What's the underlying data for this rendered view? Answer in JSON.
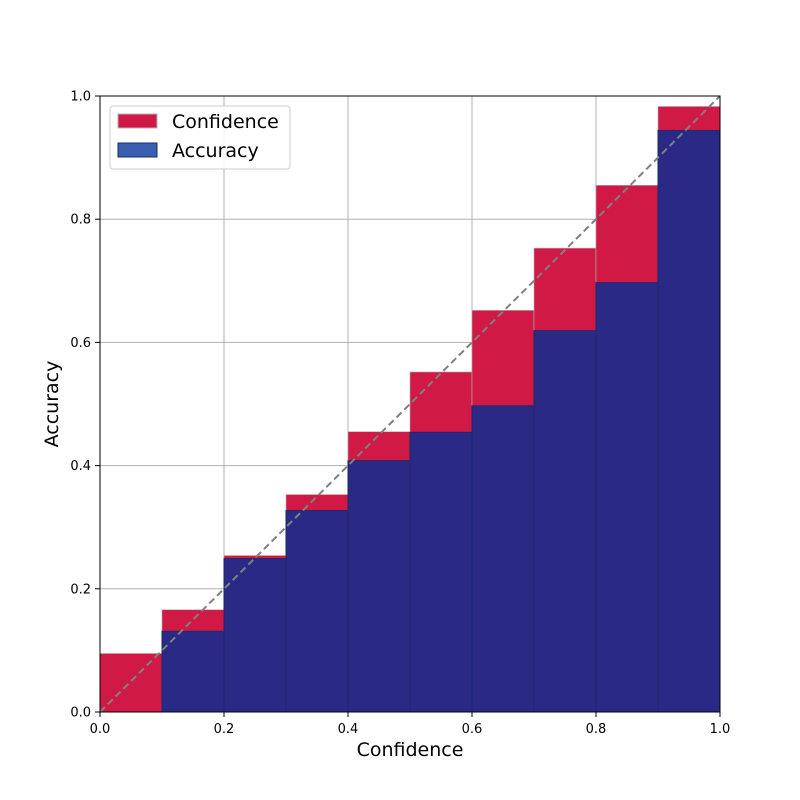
{
  "chart_data": {
    "type": "bar",
    "title": "",
    "xlabel": "Confidence",
    "ylabel": "Accuracy",
    "xlim": [
      0.0,
      1.0
    ],
    "ylim": [
      0.0,
      1.0
    ],
    "grid": true,
    "legend_position": "top-left",
    "bin_edges": [
      0.0,
      0.1,
      0.2,
      0.3,
      0.4,
      0.5,
      0.6,
      0.7,
      0.8,
      0.9,
      1.0
    ],
    "x_ticks": [
      "0.0",
      "0.2",
      "0.4",
      "0.6",
      "0.8",
      "1.0"
    ],
    "y_ticks": [
      "0.0",
      "0.2",
      "0.4",
      "0.6",
      "0.8",
      "1.0"
    ],
    "x_tick_values": [
      0.0,
      0.2,
      0.4,
      0.6,
      0.8,
      1.0
    ],
    "y_tick_values": [
      0.0,
      0.2,
      0.4,
      0.6,
      0.8,
      1.0
    ],
    "series": [
      {
        "name": "Confidence",
        "color": "#d01a45",
        "values": [
          0.095,
          0.166,
          0.254,
          0.353,
          0.455,
          0.552,
          0.652,
          0.753,
          0.855,
          0.983
        ]
      },
      {
        "name": "Accuracy",
        "color": "#2a2a86",
        "values": [
          0.0,
          0.131,
          0.249,
          0.327,
          0.408,
          0.454,
          0.497,
          0.619,
          0.697,
          0.944
        ]
      }
    ],
    "reference_line": {
      "style": "dashed",
      "color": "#808080",
      "from": [
        0.0,
        0.0
      ],
      "to": [
        1.0,
        1.0
      ]
    }
  }
}
